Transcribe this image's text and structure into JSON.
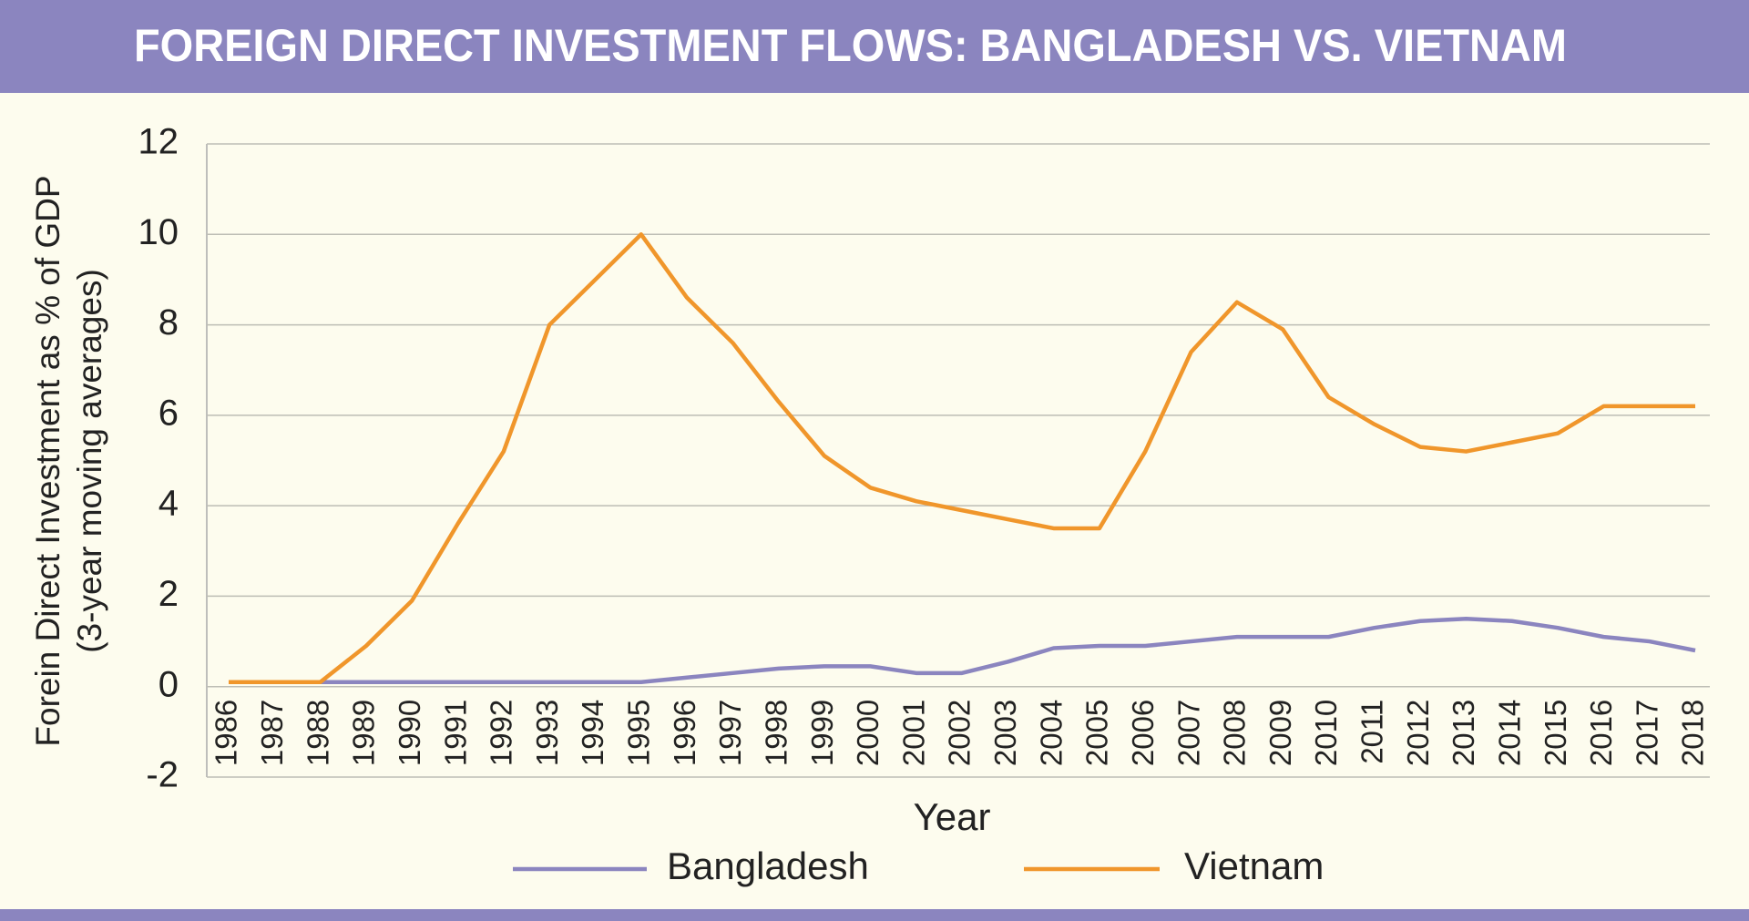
{
  "chart_data": {
    "type": "line",
    "title": "FOREIGN DIRECT INVESTMENT FLOWS: BANGLADESH VS. VIETNAM",
    "x_label": "Year",
    "y_label": [
      "Forein Direct Investment as % of GDP",
      "(3-year moving averages)"
    ],
    "categories": [
      "1986",
      "1987",
      "1988",
      "1989",
      "1990",
      "1991",
      "1992",
      "1993",
      "1994",
      "1995",
      "1996",
      "1997",
      "1998",
      "1999",
      "2000",
      "2001",
      "2002",
      "2003",
      "2004",
      "2005",
      "2006",
      "2007",
      "2008",
      "2009",
      "2010",
      "2011",
      "2012",
      "2013",
      "2014",
      "2015",
      "2016",
      "2017",
      "2018"
    ],
    "series": [
      {
        "name": "Bangladesh",
        "color": "#8b85bf",
        "values": [
          0.1,
          0.1,
          0.1,
          0.1,
          0.1,
          0.1,
          0.1,
          0.1,
          0.1,
          0.1,
          0.2,
          0.3,
          0.4,
          0.45,
          0.45,
          0.3,
          0.3,
          0.55,
          0.85,
          0.9,
          0.9,
          1.0,
          1.1,
          1.1,
          1.1,
          1.3,
          1.45,
          1.5,
          1.45,
          1.3,
          1.1,
          1.0,
          0.8
        ]
      },
      {
        "name": "Vietnam",
        "color": "#f0962b",
        "values": [
          0.1,
          0.1,
          0.1,
          0.9,
          1.9,
          3.6,
          5.2,
          8.0,
          9.0,
          10.0,
          8.6,
          7.6,
          6.3,
          5.1,
          4.4,
          4.1,
          3.9,
          3.7,
          3.5,
          3.5,
          5.2,
          7.4,
          8.5,
          7.9,
          6.4,
          5.8,
          5.3,
          5.2,
          5.4,
          5.6,
          6.2,
          6.2,
          6.2
        ]
      }
    ],
    "ylim": [
      -2,
      12
    ],
    "yticks": [
      -2,
      0,
      2,
      4,
      6,
      8,
      10,
      12
    ],
    "grid": true,
    "legend": "bottom"
  }
}
